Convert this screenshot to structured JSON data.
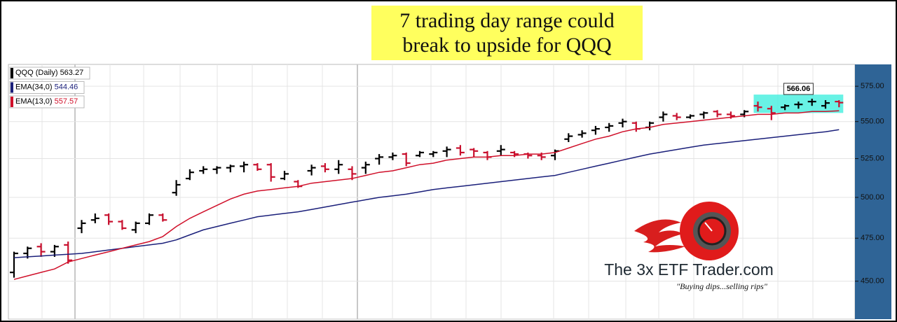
{
  "chart_data": {
    "type": "ohlc",
    "title": "7 trading day range could break to upside for QQQ",
    "log_scale": true,
    "ylim": [
      429,
      591
    ],
    "yticks": [
      {
        "value": 450,
        "label": "450.00"
      },
      {
        "value": 475,
        "label": "475.00"
      },
      {
        "value": 500,
        "label": "500.00"
      },
      {
        "value": 525,
        "label": "525.00"
      },
      {
        "value": 550,
        "label": "550.00"
      },
      {
        "value": 575,
        "label": "575.00"
      }
    ],
    "grid": true,
    "series": [
      {
        "name": "QQQ (Daily)",
        "up_color": "#000000",
        "down_color": "#c8102e",
        "open": [
          455,
          466,
          470,
          467,
          471,
          481,
          486,
          489,
          485,
          480,
          484,
          489,
          503,
          512,
          517,
          518,
          519,
          520,
          521,
          521,
          512,
          510,
          517,
          520,
          518,
          518,
          519,
          525,
          526,
          528,
          527,
          528,
          530,
          532,
          531,
          529,
          530,
          529,
          528,
          527,
          527,
          538,
          541,
          544,
          546,
          549,
          549,
          546,
          553,
          554,
          553,
          555,
          557,
          555,
          555,
          561,
          559,
          560,
          562,
          564,
          561,
          564
        ],
        "high": [
          467,
          470,
          472,
          471,
          473,
          486,
          490,
          490,
          486,
          485,
          490,
          490,
          511,
          518,
          520,
          520,
          521,
          523,
          522,
          522,
          517,
          511,
          521,
          522,
          524,
          520,
          523,
          528,
          529,
          529,
          530,
          530,
          533,
          534,
          532,
          530,
          534,
          530,
          529,
          529,
          531,
          542,
          544,
          547,
          549,
          552,
          550,
          550,
          557,
          556,
          555,
          557,
          558,
          557,
          558,
          564,
          561,
          562,
          564,
          566.06,
          565,
          565
        ],
        "low": [
          452,
          463,
          464,
          464,
          460,
          478,
          484,
          483,
          480,
          478,
          483,
          485,
          501,
          511,
          515,
          515,
          516,
          516,
          517,
          510,
          511,
          506,
          514,
          516,
          515,
          511,
          515,
          521,
          524,
          520,
          526,
          526,
          526,
          527,
          526,
          524,
          527,
          526,
          525,
          524,
          524,
          536,
          539,
          541,
          543,
          546,
          543,
          544,
          550,
          551,
          552,
          552,
          553,
          552,
          553,
          557,
          551,
          558,
          559,
          561,
          559,
          560
        ],
        "close": [
          466,
          469,
          467,
          470,
          462,
          484,
          487,
          485,
          481,
          484,
          489,
          486,
          508,
          516,
          518,
          519,
          520,
          521,
          518,
          513,
          515,
          507,
          519,
          518,
          521,
          515,
          521,
          526,
          527,
          522,
          529,
          529,
          531,
          529,
          530,
          526,
          531,
          528,
          527,
          526,
          530,
          540,
          542,
          545,
          547,
          550,
          545,
          549,
          555,
          553,
          554,
          556,
          555,
          554,
          557,
          560,
          556,
          561,
          562,
          564,
          563,
          563.27
        ]
      },
      {
        "name": "EMA(34,0)",
        "color": "#1a1f7a",
        "values": [
          463.5,
          464,
          464.5,
          465,
          465.5,
          466,
          467,
          468,
          469,
          470,
          471,
          472,
          474,
          477,
          480,
          482,
          484,
          486,
          488,
          489,
          490,
          491,
          492.5,
          494,
          495.5,
          497,
          498.5,
          500,
          501,
          502,
          503.5,
          505,
          506,
          507,
          508,
          509,
          510,
          511,
          512,
          513,
          514,
          516,
          518,
          520,
          522,
          524,
          526,
          528,
          529.5,
          531,
          532.5,
          534,
          535,
          536,
          537,
          538,
          539,
          540,
          541,
          542,
          543,
          544.46
        ]
      },
      {
        "name": "EMA(13,0)",
        "color": "#d0102a",
        "values": [
          451,
          453,
          455,
          457,
          461,
          463,
          465,
          467,
          469,
          471,
          473,
          476,
          482,
          487,
          491,
          495,
          499,
          502,
          504,
          505,
          506,
          507,
          509,
          510,
          511,
          512,
          514,
          516,
          517,
          519,
          521,
          522,
          524,
          525,
          526,
          526,
          527,
          527,
          528,
          528,
          529,
          532,
          535,
          538,
          540,
          543,
          545,
          546,
          548,
          549,
          550,
          551,
          552,
          553,
          554,
          555,
          555,
          556,
          556,
          557,
          557,
          557.57
        ]
      }
    ],
    "highlight": {
      "from_bar": 55,
      "to_bar": 61,
      "high": 569,
      "low": 556,
      "color": "#4ef0e0"
    },
    "price_label": 566.06
  },
  "logo": {
    "name": "The 3x ETF Trader.com",
    "tagline": "\"Buying dips...selling rips\""
  }
}
